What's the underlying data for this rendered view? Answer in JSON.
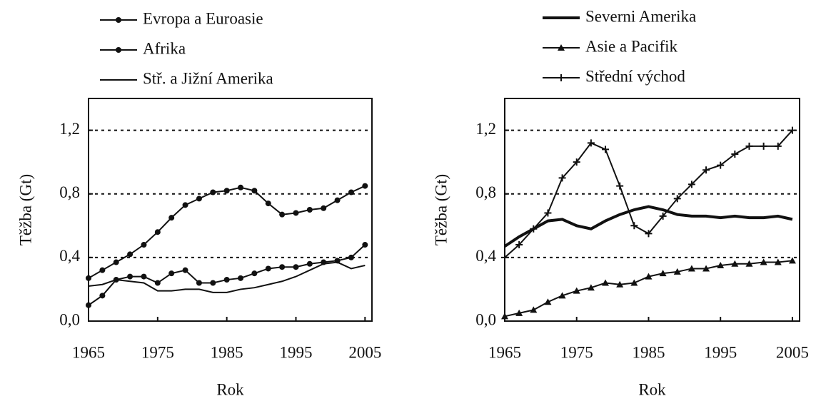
{
  "chart_data": [
    {
      "type": "line",
      "ylabel": "Těžba (Gt)",
      "xlabel": "Rok",
      "x": [
        1965,
        1967,
        1969,
        1971,
        1973,
        1975,
        1977,
        1979,
        1981,
        1983,
        1985,
        1987,
        1989,
        1991,
        1993,
        1995,
        1997,
        1999,
        2001,
        2003,
        2005
      ],
      "series": [
        {
          "name": "Evropa a Euroasie",
          "color": "#111111",
          "marker": "circle",
          "width": 2,
          "values": [
            0.27,
            0.32,
            0.37,
            0.42,
            0.48,
            0.56,
            0.65,
            0.73,
            0.77,
            0.81,
            0.82,
            0.84,
            0.82,
            0.74,
            0.67,
            0.68,
            0.7,
            0.71,
            0.76,
            0.81,
            0.85
          ]
        },
        {
          "name": "Afrika",
          "color": "#111111",
          "marker": "circle",
          "width": 2,
          "values": [
            0.1,
            0.16,
            0.26,
            0.28,
            0.28,
            0.24,
            0.3,
            0.32,
            0.24,
            0.24,
            0.26,
            0.27,
            0.3,
            0.33,
            0.34,
            0.34,
            0.36,
            0.37,
            0.38,
            0.4,
            0.48
          ]
        },
        {
          "name": "Stř. a Jižní Amerika",
          "color": "#111111",
          "marker": "none",
          "width": 2,
          "values": [
            0.22,
            0.23,
            0.26,
            0.25,
            0.24,
            0.19,
            0.19,
            0.2,
            0.2,
            0.18,
            0.18,
            0.2,
            0.21,
            0.23,
            0.25,
            0.28,
            0.32,
            0.36,
            0.37,
            0.33,
            0.35
          ]
        }
      ],
      "xlim": [
        1965,
        2006
      ],
      "ylim": [
        0,
        1.4
      ],
      "xticks": [
        1965,
        1975,
        1985,
        1995,
        2005
      ],
      "yticks": [
        {
          "value": 0,
          "label": "0,0"
        },
        {
          "value": 0.4,
          "label": "0,4"
        },
        {
          "value": 0.8,
          "label": "0,8"
        },
        {
          "value": 1.2,
          "label": "1,2"
        }
      ],
      "grid": true
    },
    {
      "type": "line",
      "ylabel": "Těžba (Gt)",
      "xlabel": "Rok",
      "x": [
        1965,
        1967,
        1969,
        1971,
        1973,
        1975,
        1977,
        1979,
        1981,
        1983,
        1985,
        1987,
        1989,
        1991,
        1993,
        1995,
        1997,
        1999,
        2001,
        2003,
        2005
      ],
      "series": [
        {
          "name": "Severni Amerika",
          "color": "#111111",
          "marker": "none",
          "width": 4,
          "values": [
            0.47,
            0.53,
            0.58,
            0.63,
            0.64,
            0.6,
            0.58,
            0.63,
            0.67,
            0.7,
            0.72,
            0.7,
            0.67,
            0.66,
            0.66,
            0.65,
            0.66,
            0.65,
            0.65,
            0.66,
            0.64
          ]
        },
        {
          "name": "Asie a Pacifik",
          "color": "#111111",
          "marker": "triangle",
          "width": 2,
          "values": [
            0.03,
            0.05,
            0.07,
            0.12,
            0.16,
            0.19,
            0.21,
            0.24,
            0.23,
            0.24,
            0.28,
            0.3,
            0.31,
            0.33,
            0.33,
            0.35,
            0.36,
            0.36,
            0.37,
            0.37,
            0.38
          ]
        },
        {
          "name": "Střední východ",
          "color": "#111111",
          "marker": "plus",
          "width": 2,
          "values": [
            0.4,
            0.48,
            0.58,
            0.68,
            0.9,
            1.0,
            1.12,
            1.08,
            0.85,
            0.6,
            0.55,
            0.66,
            0.77,
            0.86,
            0.95,
            0.98,
            1.05,
            1.1,
            1.1,
            1.1,
            1.2
          ]
        }
      ],
      "xlim": [
        1965,
        2006
      ],
      "ylim": [
        0,
        1.4
      ],
      "xticks": [
        1965,
        1975,
        1985,
        1995,
        2005
      ],
      "yticks": [
        {
          "value": 0,
          "label": "0,0"
        },
        {
          "value": 0.4,
          "label": "0,4"
        },
        {
          "value": 0.8,
          "label": "0,8"
        },
        {
          "value": 1.2,
          "label": "1,2"
        }
      ],
      "grid": true
    }
  ]
}
